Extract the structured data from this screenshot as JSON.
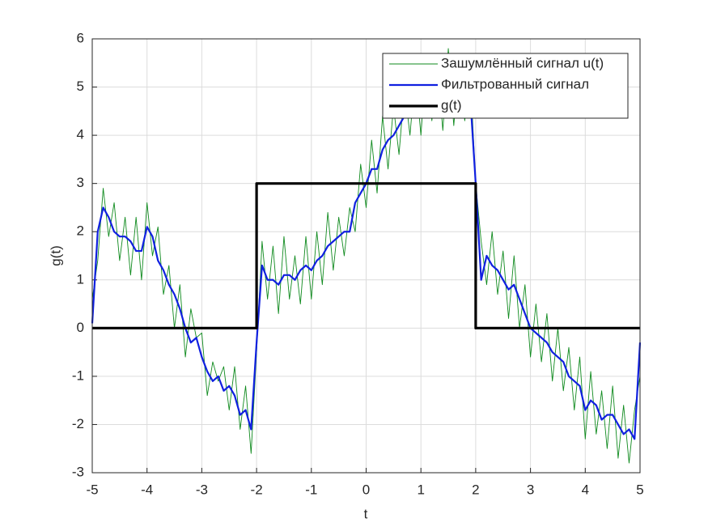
{
  "chart_data": {
    "type": "line",
    "xlabel": "t",
    "ylabel": "g(t)",
    "xlim": [
      -5,
      5
    ],
    "ylim": [
      -3,
      6
    ],
    "xticks": [
      -5,
      -4,
      -3,
      -2,
      -1,
      0,
      1,
      2,
      3,
      4,
      5
    ],
    "yticks": [
      -3,
      -2,
      -1,
      0,
      1,
      2,
      3,
      4,
      5,
      6
    ],
    "grid": true,
    "legend": "upper right",
    "x": [
      -5.0,
      -4.9,
      -4.8,
      -4.7,
      -4.6,
      -4.5,
      -4.4,
      -4.3,
      -4.2,
      -4.1,
      -4.0,
      -3.9,
      -3.8,
      -3.7,
      -3.6,
      -3.5,
      -3.4,
      -3.3,
      -3.2,
      -3.1,
      -3.0,
      -2.9,
      -2.8,
      -2.7,
      -2.6,
      -2.5,
      -2.4,
      -2.3,
      -2.2,
      -2.1,
      -2.0,
      -1.9,
      -1.8,
      -1.7,
      -1.6,
      -1.5,
      -1.4,
      -1.3,
      -1.2,
      -1.1,
      -1.0,
      -0.9,
      -0.8,
      -0.7,
      -0.6,
      -0.5,
      -0.4,
      -0.3,
      -0.2,
      -0.1,
      0.0,
      0.1,
      0.2,
      0.3,
      0.4,
      0.5,
      0.6,
      0.7,
      0.8,
      0.9,
      1.0,
      1.1,
      1.2,
      1.3,
      1.4,
      1.5,
      1.6,
      1.7,
      1.8,
      1.9,
      2.0,
      2.1,
      2.2,
      2.3,
      2.4,
      2.5,
      2.6,
      2.7,
      2.8,
      2.9,
      3.0,
      3.1,
      3.2,
      3.3,
      3.4,
      3.5,
      3.6,
      3.7,
      3.8,
      3.9,
      4.0,
      4.1,
      4.2,
      4.3,
      4.4,
      4.5,
      4.6,
      4.7,
      4.8,
      4.9,
      5.0
    ],
    "series": [
      {
        "name": "Зашумлённый сигнал u(t)",
        "color": "#0f8a1e",
        "width": 0.9,
        "values": [
          0.6,
          1.4,
          2.9,
          1.9,
          2.6,
          1.4,
          2.3,
          1.1,
          2.3,
          1.0,
          2.6,
          1.5,
          2.1,
          0.7,
          1.3,
          0.0,
          0.9,
          -0.6,
          0.4,
          -0.2,
          -0.1,
          -1.4,
          -0.7,
          -1.1,
          -0.8,
          -1.7,
          -0.8,
          -2.1,
          -1.2,
          -2.6,
          -0.5,
          1.8,
          0.6,
          1.7,
          0.3,
          1.9,
          0.6,
          1.5,
          0.5,
          1.9,
          0.6,
          2.0,
          0.9,
          2.4,
          1.2,
          2.3,
          1.5,
          2.5,
          2.0,
          3.4,
          2.5,
          3.9,
          2.8,
          4.4,
          3.3,
          4.6,
          3.6,
          5.0,
          4.0,
          5.3,
          4.0,
          5.6,
          4.3,
          5.5,
          4.1,
          5.8,
          4.2,
          5.6,
          4.3,
          5.3,
          3.0,
          1.8,
          0.9,
          2.0,
          0.7,
          1.6,
          0.2,
          1.5,
          0.0,
          0.9,
          -0.6,
          0.5,
          -0.7,
          0.3,
          -1.1,
          0.0,
          -1.3,
          -0.4,
          -1.7,
          -0.6,
          -2.3,
          -0.9,
          -2.2,
          -1.3,
          -2.5,
          -1.2,
          -2.7,
          -1.6,
          -2.8,
          -1.7,
          -1.0
        ]
      },
      {
        "name": "Фильтрованный сигнал",
        "color": "#1020e0",
        "width": 2.2,
        "values": [
          0.1,
          2.0,
          2.5,
          2.3,
          2.0,
          1.9,
          1.9,
          1.8,
          1.6,
          1.6,
          2.1,
          1.9,
          1.4,
          1.2,
          0.9,
          0.7,
          0.4,
          0.0,
          -0.3,
          -0.2,
          -0.6,
          -0.9,
          -1.1,
          -1.0,
          -1.3,
          -1.2,
          -1.4,
          -1.8,
          -1.7,
          -2.1,
          -0.3,
          1.3,
          1.0,
          1.0,
          0.9,
          1.1,
          1.1,
          1.0,
          1.2,
          1.3,
          1.2,
          1.4,
          1.5,
          1.7,
          1.8,
          1.9,
          2.0,
          2.0,
          2.6,
          2.8,
          3.0,
          3.3,
          3.3,
          3.7,
          3.9,
          4.0,
          4.2,
          4.4,
          4.6,
          4.7,
          4.6,
          4.9,
          4.8,
          4.9,
          4.8,
          5.0,
          4.9,
          4.9,
          5.1,
          4.8,
          3.0,
          1.0,
          1.5,
          1.3,
          1.2,
          1.0,
          0.8,
          0.9,
          0.6,
          0.3,
          0.0,
          -0.1,
          -0.2,
          -0.3,
          -0.5,
          -0.6,
          -0.7,
          -1.0,
          -1.1,
          -1.2,
          -1.7,
          -1.5,
          -1.6,
          -1.9,
          -1.8,
          -1.8,
          -2.0,
          -2.2,
          -2.1,
          -2.3,
          -0.3
        ]
      },
      {
        "name": "g(t)",
        "color": "#000000",
        "width": 3.2,
        "x": [
          -5,
          -2,
          -2,
          2,
          2,
          5
        ],
        "values": [
          0,
          0,
          3,
          3,
          0,
          0
        ]
      }
    ]
  }
}
